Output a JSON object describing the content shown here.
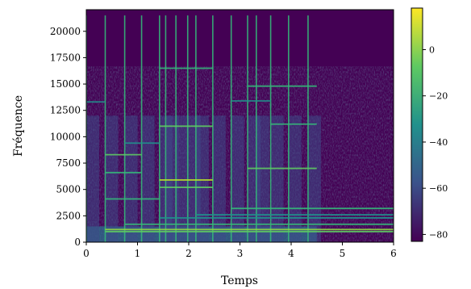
{
  "chart_data": {
    "type": "heatmap",
    "title": "",
    "xlabel": "Temps",
    "ylabel": "Fréquence",
    "xlim": [
      0,
      6
    ],
    "ylim": [
      0,
      22050
    ],
    "x_ticks": [
      "0",
      "1",
      "2",
      "3",
      "4",
      "5",
      "6"
    ],
    "y_ticks": [
      "0",
      "2500",
      "5000",
      "7500",
      "10000",
      "12500",
      "15000",
      "17500",
      "20000"
    ],
    "colorbar": {
      "range": [
        -83,
        18
      ],
      "ticks": [
        "−80",
        "−60",
        "−40",
        "−20",
        "0"
      ],
      "colormap": "viridis"
    },
    "onsets": [
      0.0,
      0.37,
      0.75,
      1.08,
      1.43,
      1.55,
      1.75,
      1.98,
      2.14,
      2.47,
      2.83,
      3.15,
      3.32,
      3.6,
      3.95,
      4.33
    ],
    "harmonic_bands_hz": [
      1000,
      1200,
      1700,
      2300,
      2600,
      3200,
      4100,
      5200,
      5900,
      6600,
      7000,
      8300,
      9400,
      11000,
      13300,
      14800,
      16500
    ]
  },
  "colors": {
    "background_low": "#440154",
    "mid": "#21918c",
    "high": "#fde725"
  }
}
